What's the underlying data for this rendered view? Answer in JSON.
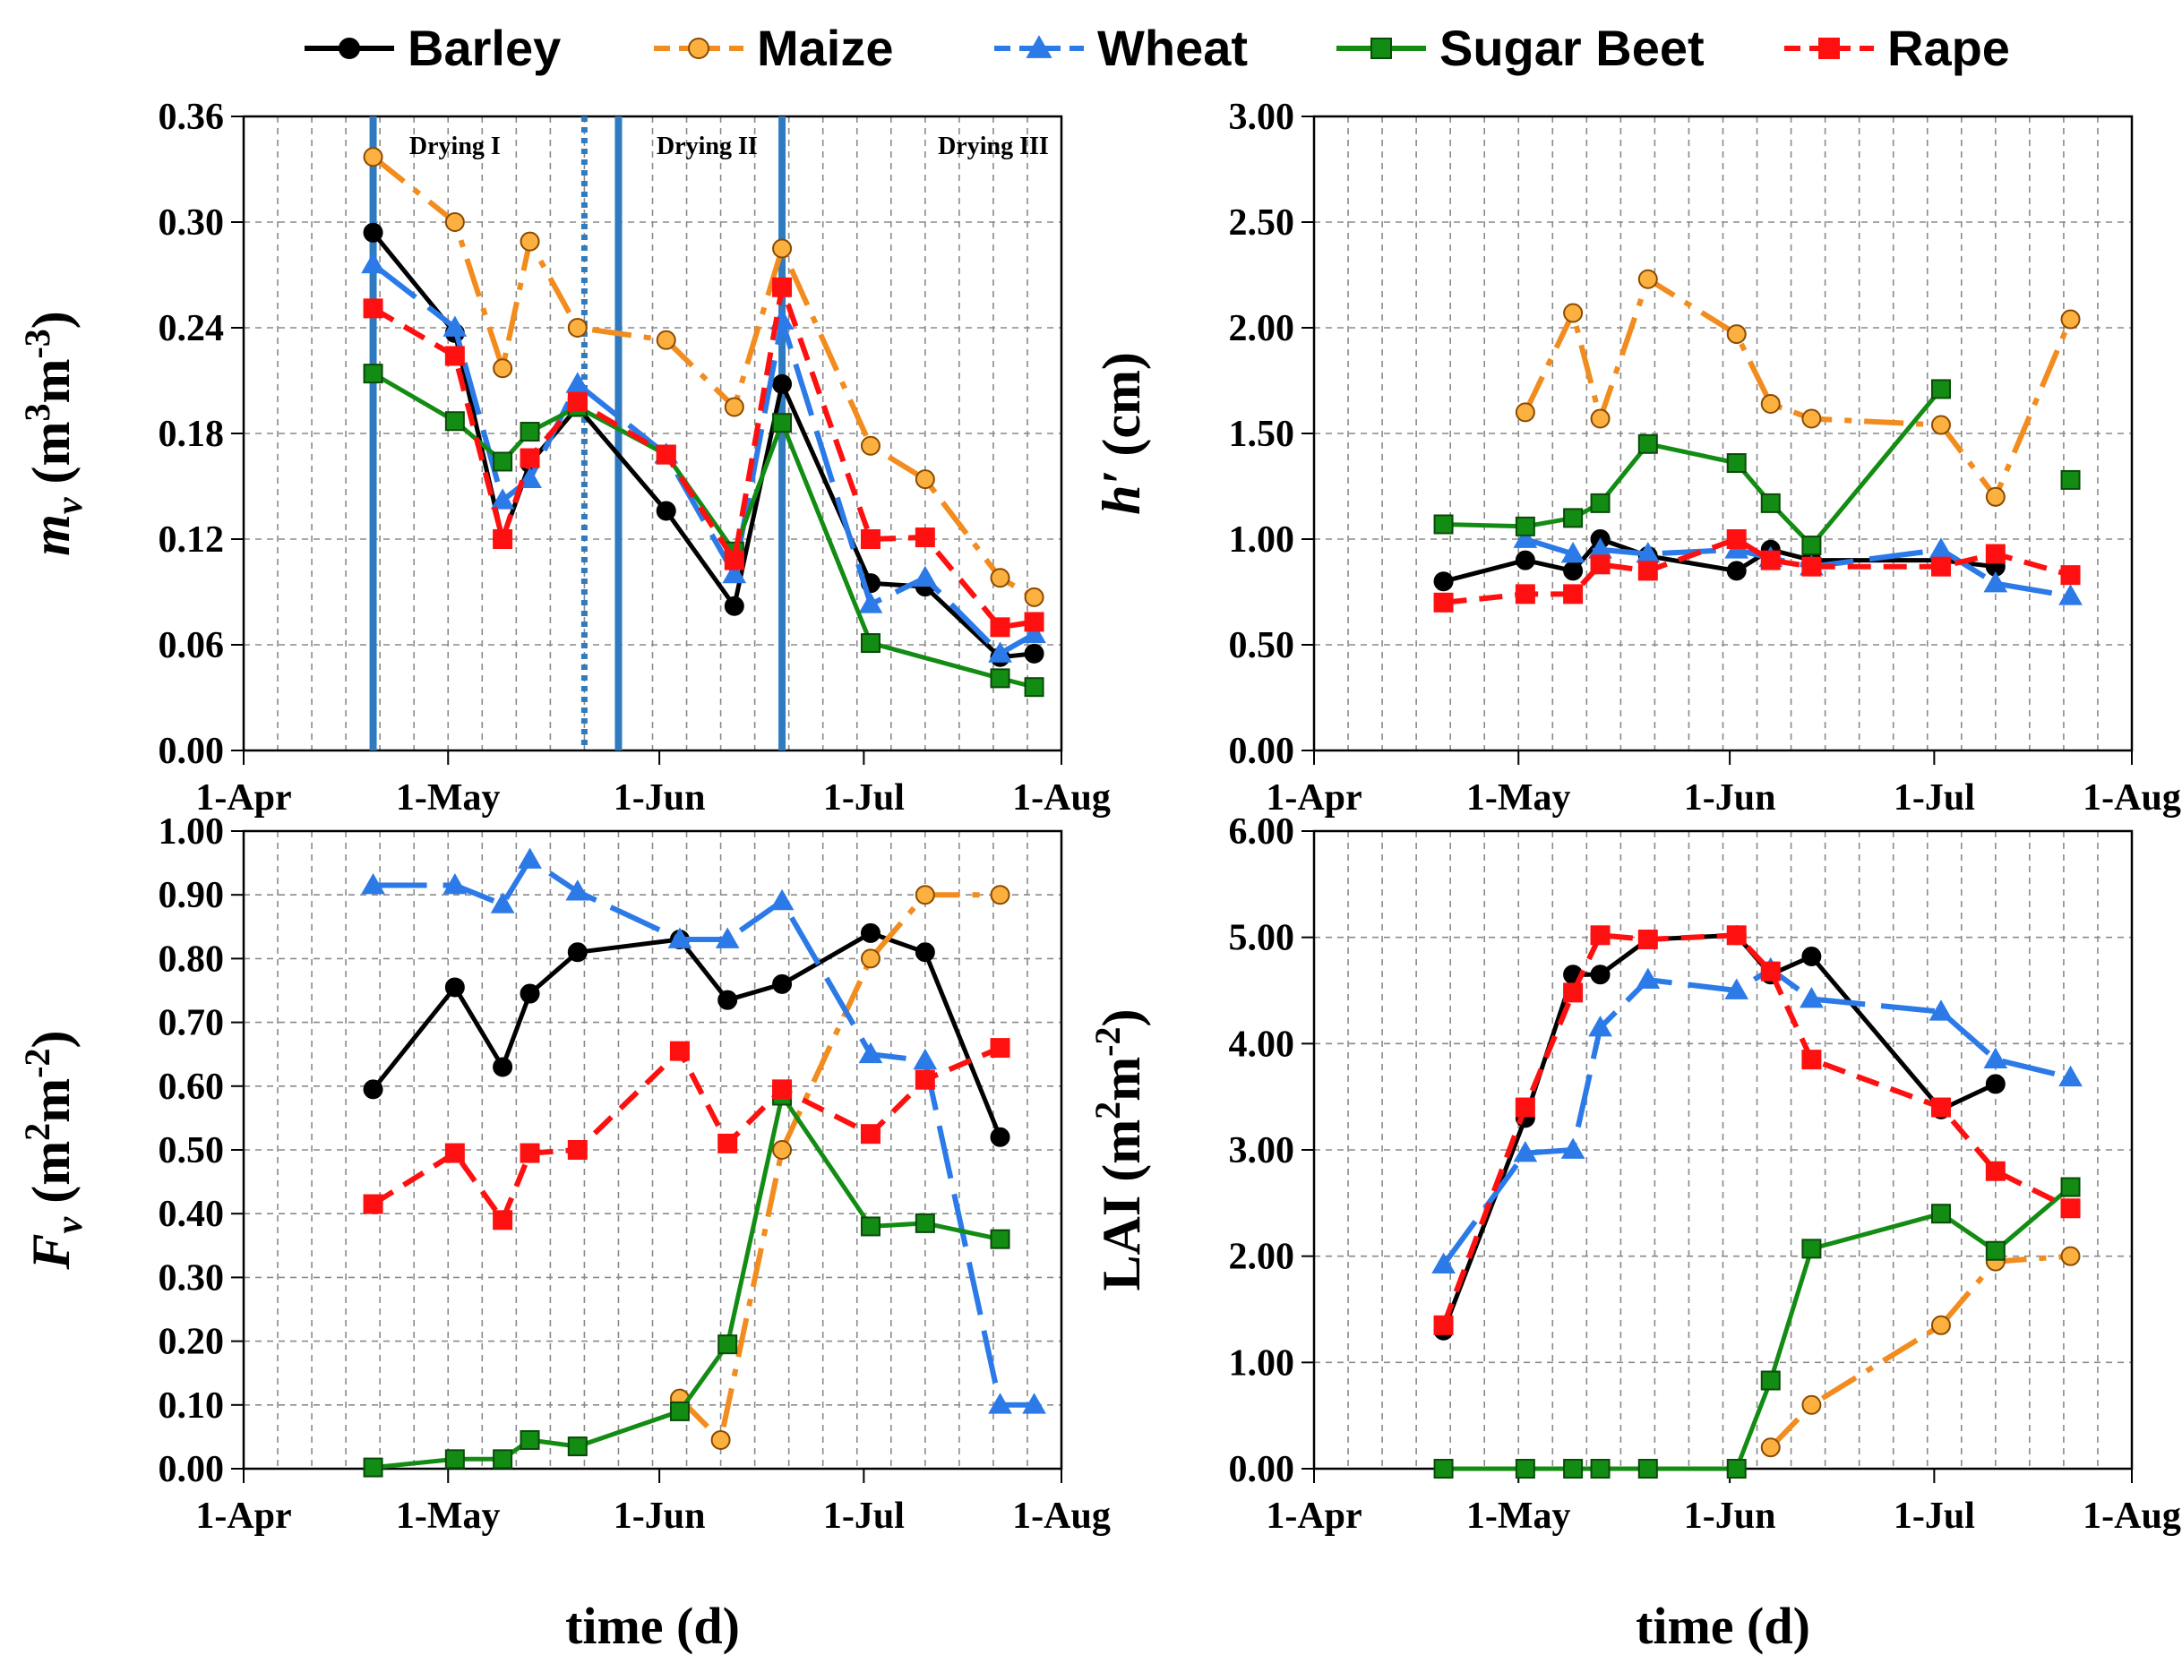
{
  "legend": [
    {
      "name": "Barley",
      "color": "#000000",
      "marker": "circle",
      "dash": "solid"
    },
    {
      "name": "Maize",
      "color": "#f28c1e",
      "marker": "circle-open",
      "dash": "dashdot"
    },
    {
      "name": "Wheat",
      "color": "#2b7ae8",
      "marker": "triangle",
      "dash": "longdash"
    },
    {
      "name": "Sugar Beet",
      "color": "#138c13",
      "marker": "square",
      "dash": "solid"
    },
    {
      "name": "Rape",
      "color": "#ff1010",
      "marker": "square",
      "dash": "dash"
    }
  ],
  "xticks": [
    "1-Apr",
    "1-May",
    "1-Jun",
    "1-Jul",
    "1-Aug"
  ],
  "chart_data": [
    {
      "id": "mv",
      "type": "line",
      "ylabel": "m_v (m³m⁻³)",
      "ylabel_main": "m",
      "ylabel_sub": "v",
      "ylabel_rest": " (m",
      "ylabel_sup1": "3",
      "ylabel_mid": "m",
      "ylabel_sup2": "-3",
      "ylabel_end": ")",
      "xlabel": "",
      "xlim": [
        0,
        120
      ],
      "ylim": [
        0,
        0.36
      ],
      "yticks": [
        "0.00",
        "0.06",
        "0.12",
        "0.18",
        "0.24",
        "0.30",
        "0.36"
      ],
      "phases": [
        "Drying I",
        "Drying II",
        "Drying III"
      ],
      "phase_pos": [
        39,
        76,
        118
      ],
      "phase_lines": [
        {
          "x": 19,
          "style": "solid"
        },
        {
          "x": 50,
          "style": "dotted"
        },
        {
          "x": 55,
          "style": "solid"
        },
        {
          "x": 79,
          "style": "solid"
        }
      ],
      "series": [
        {
          "name": "Barley",
          "x": [
            19,
            31,
            38,
            42,
            49,
            62,
            72,
            79,
            92,
            100,
            111,
            116
          ],
          "y": [
            0.294,
            0.237,
            0.12,
            0.163,
            0.195,
            0.136,
            0.082,
            0.208,
            0.095,
            0.093,
            0.053,
            0.055
          ]
        },
        {
          "name": "Maize",
          "x": [
            19,
            31,
            38,
            42,
            49,
            62,
            72,
            79,
            92,
            100,
            111,
            116
          ],
          "y": [
            0.337,
            0.3,
            0.217,
            0.289,
            0.24,
            0.233,
            0.195,
            0.285,
            0.173,
            0.154,
            0.098,
            0.087
          ]
        },
        {
          "name": "Wheat",
          "x": [
            19,
            31,
            38,
            42,
            49,
            62,
            72,
            79,
            92,
            100,
            111,
            116
          ],
          "y": [
            0.276,
            0.24,
            0.142,
            0.154,
            0.208,
            0.168,
            0.1,
            0.244,
            0.083,
            0.098,
            0.055,
            0.066
          ]
        },
        {
          "name": "Sugar Beet",
          "x": [
            19,
            31,
            38,
            42,
            49,
            62,
            72,
            79,
            92,
            111,
            116
          ],
          "y": [
            0.214,
            0.187,
            0.164,
            0.181,
            0.195,
            0.168,
            0.113,
            0.186,
            0.061,
            0.041,
            0.036
          ]
        },
        {
          "name": "Rape",
          "x": [
            19,
            31,
            38,
            42,
            49,
            62,
            72,
            79,
            92,
            100,
            111,
            116
          ],
          "y": [
            0.251,
            0.224,
            0.12,
            0.166,
            0.198,
            0.168,
            0.108,
            0.263,
            0.12,
            0.121,
            0.07,
            0.073
          ]
        }
      ]
    },
    {
      "id": "h",
      "type": "line",
      "ylabel": "h′ (cm)",
      "ylabel_main": "h′",
      "ylabel_rest": " (cm)",
      "xlabel": "",
      "xlim": [
        0,
        120
      ],
      "ylim": [
        0,
        3.0
      ],
      "yticks": [
        "0.00",
        "0.50",
        "1.00",
        "1.50",
        "2.00",
        "2.50",
        "3.00"
      ],
      "series": [
        {
          "name": "Barley",
          "x": [
            19,
            31,
            38,
            42,
            49,
            62,
            67,
            73,
            92,
            100
          ],
          "y": [
            0.8,
            0.9,
            0.85,
            1.0,
            0.92,
            0.85,
            0.95,
            0.9,
            0.9,
            0.87
          ]
        },
        {
          "name": "Maize",
          "x": [
            31,
            38,
            42,
            49,
            62,
            67,
            73,
            92,
            100,
            111
          ],
          "y": [
            1.6,
            2.07,
            1.57,
            2.23,
            1.97,
            1.64,
            1.57,
            1.54,
            1.2,
            2.04
          ]
        },
        {
          "name": "Wheat",
          "x": [
            31,
            38,
            42,
            49,
            62,
            67,
            73,
            92,
            100,
            111
          ],
          "y": [
            1.0,
            0.93,
            0.95,
            0.93,
            0.95,
            0.91,
            0.87,
            0.95,
            0.79,
            0.73
          ]
        },
        {
          "name": "Sugar Beet",
          "x": [
            19,
            31,
            38,
            42,
            49,
            62,
            67,
            73,
            92,
            111
          ],
          "y": [
            1.07,
            1.06,
            1.1,
            1.17,
            1.45,
            1.36,
            1.17,
            0.97,
            1.71,
            1.28
          ],
          "breakBefore": [
            9
          ]
        },
        {
          "name": "Rape",
          "x": [
            19,
            31,
            38,
            42,
            49,
            62,
            67,
            73,
            92,
            100,
            111
          ],
          "y": [
            0.7,
            0.74,
            0.74,
            0.88,
            0.85,
            1.0,
            0.9,
            0.87,
            0.87,
            0.93,
            0.83
          ]
        }
      ]
    },
    {
      "id": "fv",
      "type": "line",
      "ylabel": "F_v (m²m⁻²)",
      "ylabel_main": "F",
      "ylabel_sub": "v",
      "ylabel_rest": " (m",
      "ylabel_sup1": "2",
      "ylabel_mid": "m",
      "ylabel_sup2": "-2",
      "ylabel_end": ")",
      "xlabel": "time (d)",
      "xlim": [
        0,
        120
      ],
      "ylim": [
        0,
        1.0
      ],
      "yticks": [
        "0.00",
        "0.10",
        "0.20",
        "0.30",
        "0.40",
        "0.50",
        "0.60",
        "0.70",
        "0.80",
        "0.90",
        "1.00"
      ],
      "series": [
        {
          "name": "Barley",
          "x": [
            19,
            31,
            38,
            42,
            49,
            64,
            71,
            79,
            92,
            100,
            111
          ],
          "y": [
            0.595,
            0.755,
            0.63,
            0.745,
            0.81,
            0.83,
            0.735,
            0.76,
            0.84,
            0.81,
            0.52
          ]
        },
        {
          "name": "Maize",
          "x": [
            64,
            70,
            79,
            92,
            100,
            111
          ],
          "y": [
            0.11,
            0.045,
            0.5,
            0.8,
            0.9,
            0.9
          ]
        },
        {
          "name": "Wheat",
          "x": [
            19,
            31,
            38,
            42,
            49,
            64,
            71,
            79,
            92,
            100,
            111,
            116
          ],
          "y": [
            0.915,
            0.915,
            0.885,
            0.955,
            0.905,
            0.83,
            0.83,
            0.89,
            0.65,
            0.64,
            0.1,
            0.1
          ]
        },
        {
          "name": "Sugar Beet",
          "x": [
            19,
            31,
            38,
            42,
            49,
            64,
            71,
            79,
            92,
            100,
            111
          ],
          "y": [
            0.002,
            0.015,
            0.015,
            0.045,
            0.035,
            0.09,
            0.195,
            0.585,
            0.38,
            0.385,
            0.36
          ]
        },
        {
          "name": "Rape",
          "x": [
            19,
            31,
            38,
            42,
            49,
            64,
            71,
            79,
            92,
            100,
            111
          ],
          "y": [
            0.415,
            0.495,
            0.39,
            0.495,
            0.5,
            0.655,
            0.51,
            0.595,
            0.525,
            0.61,
            0.66
          ]
        }
      ]
    },
    {
      "id": "lai",
      "type": "line",
      "ylabel": "LAI (m²m⁻²)",
      "ylabel_main": "LAI",
      "ylabel_rest": " (m",
      "ylabel_sup1": "2",
      "ylabel_mid": "m",
      "ylabel_sup2": "-2",
      "ylabel_end": ")",
      "xlabel": "time (d)",
      "xlim": [
        0,
        120
      ],
      "ylim": [
        0,
        6.0
      ],
      "yticks": [
        "0.00",
        "1.00",
        "2.00",
        "3.00",
        "4.00",
        "5.00",
        "6.00"
      ],
      "series": [
        {
          "name": "Barley",
          "x": [
            19,
            31,
            38,
            42,
            49,
            62,
            67,
            73,
            92,
            100
          ],
          "y": [
            1.3,
            3.3,
            4.65,
            4.65,
            4.98,
            5.02,
            4.65,
            4.82,
            3.38,
            3.62
          ]
        },
        {
          "name": "Maize",
          "x": [
            67,
            73,
            92,
            100,
            111
          ],
          "y": [
            0.2,
            0.6,
            1.35,
            1.95,
            2.0
          ]
        },
        {
          "name": "Wheat",
          "x": [
            19,
            31,
            38,
            42,
            49,
            62,
            67,
            73,
            92,
            100,
            111
          ],
          "y": [
            1.92,
            2.97,
            3.0,
            4.15,
            4.6,
            4.5,
            4.7,
            4.42,
            4.3,
            3.85,
            3.68
          ]
        },
        {
          "name": "Sugar Beet",
          "x": [
            19,
            31,
            38,
            42,
            49,
            62,
            67,
            73,
            92,
            100,
            111
          ],
          "y": [
            0.0,
            0.0,
            0.0,
            0.0,
            0.0,
            0.0,
            0.83,
            2.07,
            2.4,
            2.05,
            2.65
          ]
        },
        {
          "name": "Rape",
          "x": [
            19,
            31,
            38,
            42,
            49,
            62,
            67,
            73,
            92,
            100,
            111
          ],
          "y": [
            1.35,
            3.4,
            4.48,
            5.02,
            4.98,
            5.02,
            4.68,
            3.85,
            3.4,
            2.8,
            2.45
          ]
        }
      ]
    }
  ]
}
